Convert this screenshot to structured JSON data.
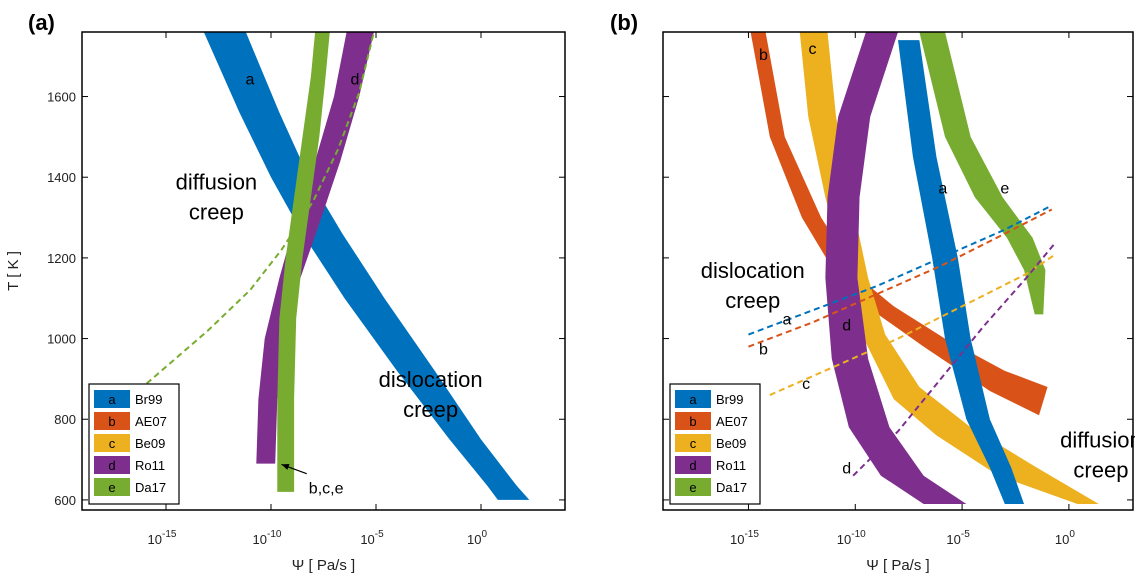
{
  "chart_data": [
    {
      "type": "area",
      "panel_label": "(a)",
      "xlabel": "Ψ [ Pa/s ]",
      "ylabel": "T [ K ]",
      "x_scale": "log",
      "xlim_log10": [
        -19,
        4
      ],
      "ylim": [
        575,
        1760
      ],
      "x_ticks": [
        {
          "exp": -15,
          "label_base": "10",
          "label_exp": "-15"
        },
        {
          "exp": -10,
          "label_base": "10",
          "label_exp": "-10"
        },
        {
          "exp": -5,
          "label_base": "10",
          "label_exp": "-5"
        },
        {
          "exp": 0,
          "label_base": "10",
          "label_exp": "0"
        }
      ],
      "y_ticks": [
        {
          "value": 600,
          "label": "600"
        },
        {
          "value": 800,
          "label": "800"
        },
        {
          "value": 1000,
          "label": "1000"
        },
        {
          "value": 1200,
          "label": "1200"
        },
        {
          "value": 1400,
          "label": "1400"
        },
        {
          "value": 1600,
          "label": "1600"
        }
      ],
      "regions": [
        {
          "lines": [
            "diffusion",
            "creep"
          ],
          "x_log10": -12.6,
          "y": 1370
        },
        {
          "lines": [
            "dislocation",
            "creep"
          ],
          "x_log10": -2.4,
          "y": 880
        }
      ],
      "bands": [
        {
          "key": "a",
          "color": "#0072BD",
          "label_at": [
            -11.0,
            1630
          ],
          "left": [
            [
              -13.2,
              1760
            ],
            [
              -11.5,
              1560
            ],
            [
              -10.0,
              1400
            ],
            [
              -8.5,
              1260
            ],
            [
              -6.5,
              1100
            ],
            [
              -4.0,
              920
            ],
            [
              -1.5,
              750
            ],
            [
              0.3,
              635
            ],
            [
              0.8,
              600
            ]
          ],
          "right": [
            [
              -11.2,
              1760
            ],
            [
              -9.6,
              1560
            ],
            [
              -8.2,
              1400
            ],
            [
              -6.6,
              1260
            ],
            [
              -4.6,
              1100
            ],
            [
              -2.2,
              920
            ],
            [
              0.0,
              750
            ],
            [
              1.7,
              635
            ],
            [
              2.3,
              600
            ]
          ]
        },
        {
          "key": "d",
          "color": "#7E2F8E",
          "label_at": [
            -6.0,
            1630
          ],
          "left": [
            [
              -10.7,
              690
            ],
            [
              -10.6,
              850
            ],
            [
              -10.3,
              1000
            ],
            [
              -9.6,
              1150
            ],
            [
              -8.8,
              1300
            ],
            [
              -7.9,
              1440
            ],
            [
              -7.0,
              1600
            ],
            [
              -6.4,
              1760
            ]
          ],
          "right": [
            [
              -9.8,
              690
            ],
            [
              -9.7,
              850
            ],
            [
              -9.4,
              1000
            ],
            [
              -8.6,
              1150
            ],
            [
              -7.6,
              1300
            ],
            [
              -6.7,
              1440
            ],
            [
              -5.8,
              1600
            ],
            [
              -5.1,
              1760
            ]
          ]
        },
        {
          "key": "e",
          "color": "#77AC30",
          "label_at": null,
          "left": [
            [
              -9.7,
              620
            ],
            [
              -9.7,
              850
            ],
            [
              -9.6,
              1050
            ],
            [
              -9.3,
              1200
            ],
            [
              -8.9,
              1350
            ],
            [
              -8.5,
              1500
            ],
            [
              -8.1,
              1650
            ],
            [
              -7.9,
              1760
            ]
          ],
          "right": [
            [
              -8.9,
              620
            ],
            [
              -8.9,
              850
            ],
            [
              -8.8,
              1050
            ],
            [
              -8.5,
              1200
            ],
            [
              -8.1,
              1350
            ],
            [
              -7.7,
              1500
            ],
            [
              -7.4,
              1650
            ],
            [
              -7.2,
              1760
            ]
          ]
        }
      ],
      "dashed": [
        {
          "color": "#77AC30",
          "label": null,
          "label_at": null,
          "points": [
            [
              -17.0,
              840
            ],
            [
              -15.0,
              930
            ],
            [
              -13.0,
              1020
            ],
            [
              -11.0,
              1120
            ],
            [
              -9.5,
              1220
            ],
            [
              -8.0,
              1340
            ],
            [
              -6.8,
              1470
            ],
            [
              -5.8,
              1610
            ],
            [
              -5.1,
              1760
            ]
          ]
        }
      ],
      "annotations": [
        {
          "text": "b,c,e",
          "text_at": [
            -8.2,
            660
          ],
          "arrow_from": [
            -8.3,
            665
          ],
          "arrow_to": [
            -9.5,
            688
          ]
        }
      ],
      "legend": {
        "position": "bottom-left",
        "entries": [
          {
            "key": "a",
            "name": "Br99",
            "color": "#0072BD"
          },
          {
            "key": "b",
            "name": "AE07",
            "color": "#D95319"
          },
          {
            "key": "c",
            "name": "Be09",
            "color": "#EDB120"
          },
          {
            "key": "d",
            "name": "Ro11",
            "color": "#7E2F8E"
          },
          {
            "key": "e",
            "name": "Da17",
            "color": "#77AC30"
          }
        ]
      }
    },
    {
      "type": "area",
      "panel_label": "(b)",
      "xlabel": "Ψ [ Pa/s ]",
      "ylabel": "",
      "x_scale": "log",
      "xlim_log10": [
        -19,
        3
      ],
      "ylim": [
        575,
        1760
      ],
      "x_ticks": [
        {
          "exp": -15,
          "label_base": "10",
          "label_exp": "-15"
        },
        {
          "exp": -10,
          "label_base": "10",
          "label_exp": "-10"
        },
        {
          "exp": -5,
          "label_base": "10",
          "label_exp": "-5"
        },
        {
          "exp": 0,
          "label_base": "10",
          "label_exp": "0"
        }
      ],
      "y_ticks": [
        {
          "value": 600,
          "label": ""
        },
        {
          "value": 800,
          "label": ""
        },
        {
          "value": 1000,
          "label": ""
        },
        {
          "value": 1200,
          "label": ""
        },
        {
          "value": 1400,
          "label": ""
        },
        {
          "value": 1600,
          "label": ""
        }
      ],
      "regions": [
        {
          "lines": [
            "dislocation",
            "creep"
          ],
          "x_log10": -14.8,
          "y": 1150
        },
        {
          "lines": [
            "diffusion",
            "creep"
          ],
          "x_log10": 1.5,
          "y": 730
        }
      ],
      "bands": [
        {
          "key": "b",
          "color": "#D95319",
          "label_at": [
            -14.3,
            1690
          ],
          "left": [
            [
              -14.9,
              1760
            ],
            [
              -14.0,
              1500
            ],
            [
              -12.5,
              1300
            ],
            [
              -10.8,
              1150
            ],
            [
              -9.2,
              1070
            ],
            [
              -6.8,
              980
            ],
            [
              -3.7,
              870
            ],
            [
              -1.4,
              810
            ]
          ],
          "right": [
            [
              -14.2,
              1760
            ],
            [
              -13.3,
              1500
            ],
            [
              -11.6,
              1300
            ],
            [
              -9.8,
              1150
            ],
            [
              -8.2,
              1080
            ],
            [
              -5.8,
              1000
            ],
            [
              -3.0,
              920
            ],
            [
              -1.0,
              880
            ]
          ]
        },
        {
          "key": "c",
          "color": "#EDB120",
          "label_at": [
            -12.0,
            1705
          ],
          "left": [
            [
              -12.6,
              1760
            ],
            [
              -12.2,
              1550
            ],
            [
              -11.4,
              1350
            ],
            [
              -10.4,
              1150
            ],
            [
              -9.6,
              1000
            ],
            [
              -8.2,
              850
            ],
            [
              -6.2,
              760
            ],
            [
              -3.3,
              660
            ],
            [
              0.4,
              590
            ]
          ],
          "right": [
            [
              -11.3,
              1760
            ],
            [
              -10.9,
              1550
            ],
            [
              -10.2,
              1350
            ],
            [
              -9.4,
              1150
            ],
            [
              -8.6,
              1010
            ],
            [
              -7.0,
              880
            ],
            [
              -4.6,
              780
            ],
            [
              -1.5,
              680
            ],
            [
              1.4,
              590
            ]
          ]
        },
        {
          "key": "a",
          "color": "#0072BD",
          "label_at": [
            -5.9,
            1360
          ],
          "left": [
            [
              -8.0,
              1740
            ],
            [
              -7.3,
              1450
            ],
            [
              -6.4,
              1200
            ],
            [
              -5.8,
              1000
            ],
            [
              -4.8,
              800
            ],
            [
              -3.7,
              680
            ],
            [
              -3.0,
              590
            ]
          ],
          "right": [
            [
              -7.0,
              1740
            ],
            [
              -6.2,
              1450
            ],
            [
              -5.2,
              1200
            ],
            [
              -4.6,
              1000
            ],
            [
              -3.7,
              800
            ],
            [
              -2.7,
              680
            ],
            [
              -2.1,
              590
            ]
          ]
        },
        {
          "key": "d",
          "color": "#7E2F8E",
          "label_at": [
            -10.4,
            1020
          ],
          "left": [
            [
              -9.5,
              1760
            ],
            [
              -10.8,
              1550
            ],
            [
              -11.3,
              1350
            ],
            [
              -11.4,
              1150
            ],
            [
              -11.1,
              950
            ],
            [
              -10.3,
              780
            ],
            [
              -8.8,
              660
            ],
            [
              -6.8,
              590
            ]
          ],
          "right": [
            [
              -8.0,
              1760
            ],
            [
              -9.3,
              1550
            ],
            [
              -9.8,
              1350
            ],
            [
              -9.9,
              1150
            ],
            [
              -9.4,
              950
            ],
            [
              -8.4,
              780
            ],
            [
              -6.8,
              660
            ],
            [
              -4.8,
              590
            ]
          ]
        },
        {
          "key": "e",
          "color": "#77AC30",
          "label_at": [
            -3.0,
            1360
          ],
          "left": [
            [
              -7.0,
              1760
            ],
            [
              -5.8,
              1500
            ],
            [
              -4.4,
              1350
            ],
            [
              -2.9,
              1250
            ],
            [
              -2.1,
              1170
            ],
            [
              -1.6,
              1060
            ]
          ],
          "right": [
            [
              -5.8,
              1760
            ],
            [
              -4.6,
              1500
            ],
            [
              -3.1,
              1350
            ],
            [
              -1.7,
              1250
            ],
            [
              -1.1,
              1170
            ],
            [
              -1.2,
              1060
            ]
          ]
        }
      ],
      "dashed": [
        {
          "color": "#0072BD",
          "label": "a",
          "label_at": [
            -13.2,
            1035
          ],
          "points": [
            [
              -15.0,
              1010
            ],
            [
              -12.0,
              1070
            ],
            [
              -9.0,
              1130
            ],
            [
              -6.0,
              1200
            ],
            [
              -3.0,
              1270
            ],
            [
              -0.8,
              1330
            ]
          ]
        },
        {
          "color": "#D95319",
          "label": "b",
          "label_at": [
            -14.3,
            960
          ],
          "points": [
            [
              -15.0,
              980
            ],
            [
              -12.0,
              1040
            ],
            [
              -9.0,
              1110
            ],
            [
              -6.0,
              1180
            ],
            [
              -3.0,
              1260
            ],
            [
              -0.8,
              1320
            ]
          ]
        },
        {
          "color": "#EDB120",
          "label": "c",
          "label_at": [
            -12.3,
            875
          ],
          "points": [
            [
              -14.0,
              860
            ],
            [
              -11.0,
              930
            ],
            [
              -8.0,
              1000
            ],
            [
              -5.0,
              1080
            ],
            [
              -2.0,
              1160
            ],
            [
              -0.6,
              1210
            ]
          ]
        },
        {
          "color": "#7E2F8E",
          "label": "d",
          "label_at": [
            -10.4,
            665
          ],
          "points": [
            [
              -10.1,
              660
            ],
            [
              -8.0,
              770
            ],
            [
              -6.0,
              900
            ],
            [
              -4.0,
              1030
            ],
            [
              -2.0,
              1150
            ],
            [
              -0.6,
              1240
            ]
          ]
        }
      ],
      "annotations": [],
      "legend": {
        "position": "bottom-left",
        "entries": [
          {
            "key": "a",
            "name": "Br99",
            "color": "#0072BD"
          },
          {
            "key": "b",
            "name": "AE07",
            "color": "#D95319"
          },
          {
            "key": "c",
            "name": "Be09",
            "color": "#EDB120"
          },
          {
            "key": "d",
            "name": "Ro11",
            "color": "#7E2F8E"
          },
          {
            "key": "e",
            "name": "Da17",
            "color": "#77AC30"
          }
        ]
      }
    }
  ]
}
